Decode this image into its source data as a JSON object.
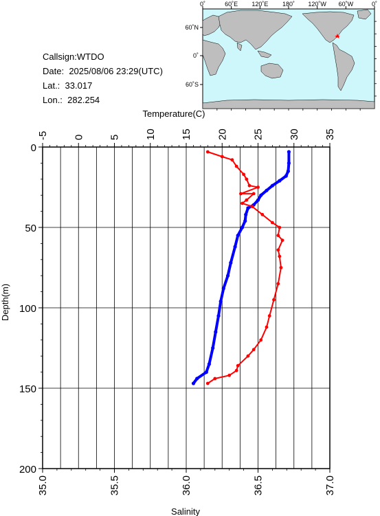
{
  "station": {
    "callsign_label": "Callsign:",
    "callsign": "WTDO",
    "date_label": "Date:",
    "date": "2025/08/06 23:29(UTC)",
    "lat_label": "Lat.:",
    "lat": "33.017",
    "lon_label": "Lon.:",
    "lon": "282.254"
  },
  "map": {
    "top_labels": [
      "0˚",
      "60˚E",
      "120˚E",
      "180˚",
      "120˚W",
      "60˚W",
      "0˚"
    ],
    "left_labels": [
      "60˚N",
      "0˚",
      "60˚S"
    ],
    "ocean_color": "#cdf7fa",
    "land_color": "#bebebe",
    "marker_color": "#ff0000"
  },
  "chart_data": {
    "type": "line",
    "ylabel": "Depth(m)",
    "ylim": [
      0,
      200
    ],
    "yticks": [
      0,
      50,
      100,
      150,
      200
    ],
    "top_axis": {
      "label": "Temperature(C)",
      "range": [
        -5,
        35
      ],
      "ticks": [
        -5,
        0,
        5,
        10,
        15,
        20,
        25,
        30,
        35
      ]
    },
    "bottom_axis": {
      "label": "Salinity",
      "range": [
        35.0,
        37.0
      ],
      "ticks": [
        "35.0",
        "35.5",
        "36.0",
        "36.5",
        "37.0"
      ]
    },
    "grid": true,
    "series": [
      {
        "axis": "temperature",
        "color": "#0000ff",
        "points": [
          [
            29.3,
            3
          ],
          [
            29.3,
            10
          ],
          [
            29.2,
            15
          ],
          [
            28.9,
            18
          ],
          [
            28.0,
            21
          ],
          [
            27.0,
            24
          ],
          [
            26.2,
            27
          ],
          [
            25.4,
            30
          ],
          [
            25.0,
            33
          ],
          [
            24.4,
            36
          ],
          [
            23.6,
            38
          ],
          [
            23.3,
            42
          ],
          [
            23.2,
            46
          ],
          [
            22.8,
            50
          ],
          [
            22.2,
            55
          ],
          [
            21.8,
            62
          ],
          [
            21.2,
            72
          ],
          [
            20.8,
            80
          ],
          [
            20.2,
            88
          ],
          [
            19.8,
            96
          ],
          [
            19.5,
            105
          ],
          [
            19.1,
            115
          ],
          [
            18.7,
            125
          ],
          [
            18.2,
            135
          ],
          [
            17.8,
            140
          ],
          [
            16.5,
            144
          ],
          [
            16.0,
            147
          ]
        ]
      },
      {
        "axis": "salinity",
        "color": "#ff0000",
        "points": [
          [
            36.15,
            3
          ],
          [
            36.25,
            6
          ],
          [
            36.32,
            8
          ],
          [
            36.35,
            12
          ],
          [
            36.4,
            17
          ],
          [
            36.42,
            20
          ],
          [
            36.44,
            24
          ],
          [
            36.5,
            25
          ],
          [
            36.38,
            29
          ],
          [
            36.47,
            29
          ],
          [
            36.42,
            33
          ],
          [
            36.39,
            35
          ],
          [
            36.46,
            37
          ],
          [
            36.53,
            42
          ],
          [
            36.6,
            47
          ],
          [
            36.65,
            50
          ],
          [
            36.64,
            55
          ],
          [
            36.67,
            58
          ],
          [
            36.64,
            64
          ],
          [
            36.65,
            68
          ],
          [
            36.66,
            75
          ],
          [
            36.64,
            85
          ],
          [
            36.61,
            95
          ],
          [
            36.58,
            105
          ],
          [
            36.56,
            112
          ],
          [
            36.52,
            120
          ],
          [
            36.47,
            126
          ],
          [
            36.43,
            130
          ],
          [
            36.36,
            136
          ],
          [
            36.35,
            139
          ],
          [
            36.3,
            142
          ],
          [
            36.2,
            144
          ],
          [
            36.15,
            147
          ]
        ]
      }
    ]
  }
}
